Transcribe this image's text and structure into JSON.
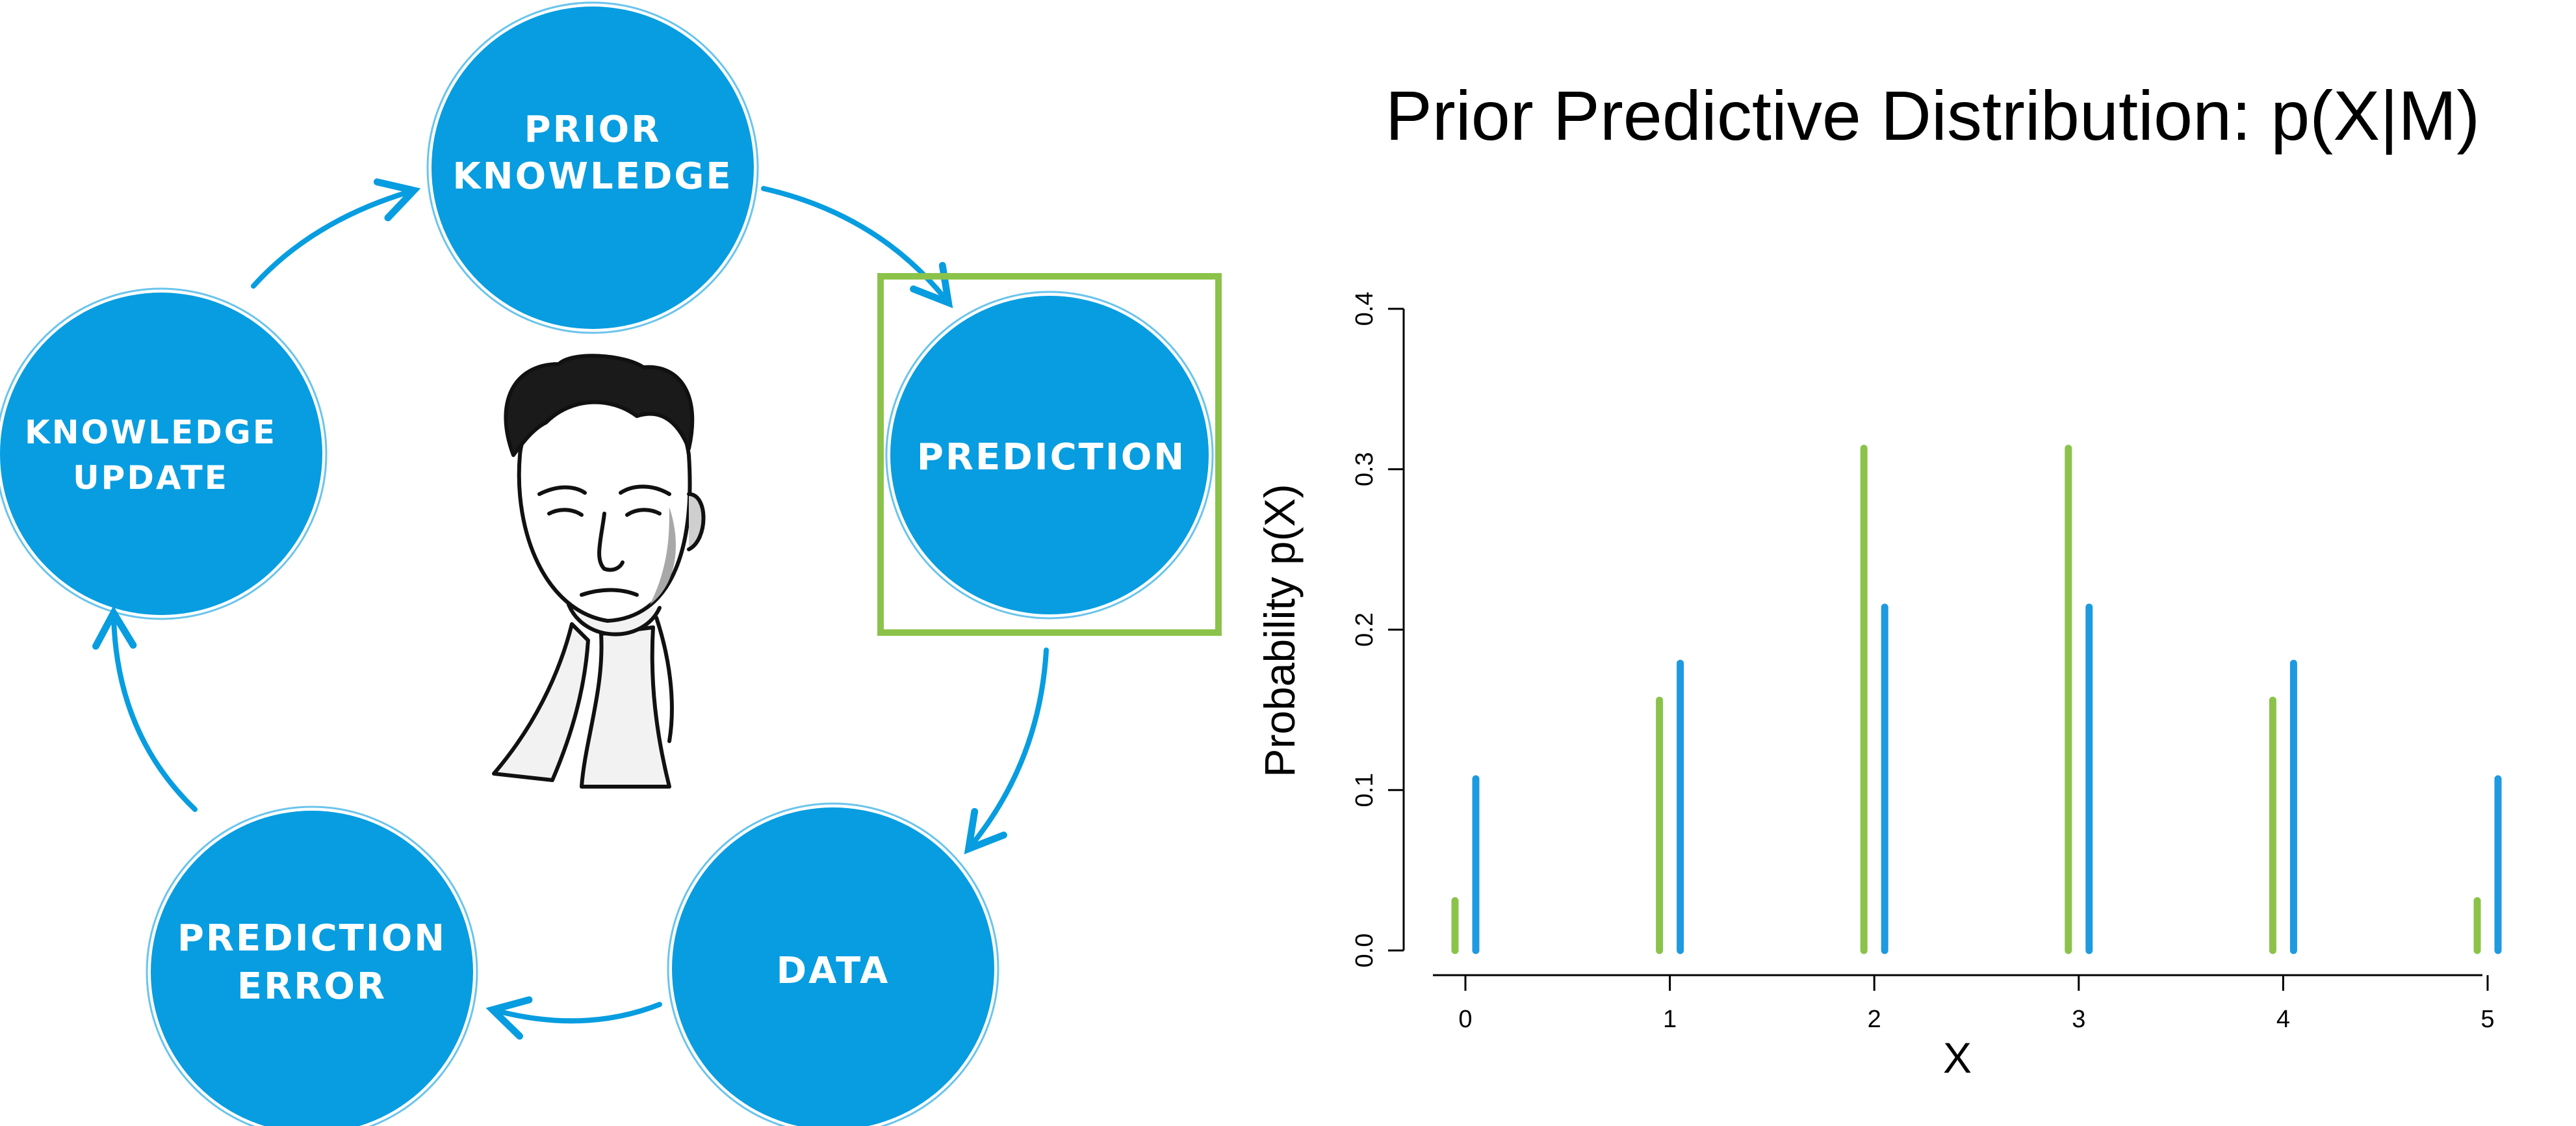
{
  "cycle": {
    "node_color": "#079DE0",
    "highlight_color": "#8BC34A",
    "nodes": {
      "prior_knowledge": {
        "line1": "PRIOR",
        "line2": "KNOWLEDGE"
      },
      "prediction": {
        "line1": "PREDICTION"
      },
      "data": {
        "line1": "DATA"
      },
      "prediction_error": {
        "line1": "PREDICTION",
        "line2": "ERROR"
      },
      "knowledge_update": {
        "line1": "KNOWLEDGE",
        "line2": "UPDATE"
      }
    },
    "highlighted_node": "prediction",
    "center_figure": "portrait-illustration"
  },
  "chart_data": {
    "type": "bar",
    "title": "Prior Predictive Distribution: p(X|M)",
    "xlabel": "X",
    "ylabel": "Probability p(X)",
    "categories": [
      "0",
      "1",
      "2",
      "3",
      "4",
      "5"
    ],
    "ylim": [
      0,
      0.4
    ],
    "yticks": [
      "0.0",
      "0.1",
      "0.2",
      "0.3",
      "0.4"
    ],
    "grid": false,
    "series": [
      {
        "color": "#8BC34A",
        "values": [
          0.031,
          0.156,
          0.313,
          0.313,
          0.156,
          0.031
        ]
      },
      {
        "color": "#1E9AE0",
        "values": [
          0.107,
          0.179,
          0.214,
          0.214,
          0.179,
          0.107
        ]
      }
    ]
  }
}
